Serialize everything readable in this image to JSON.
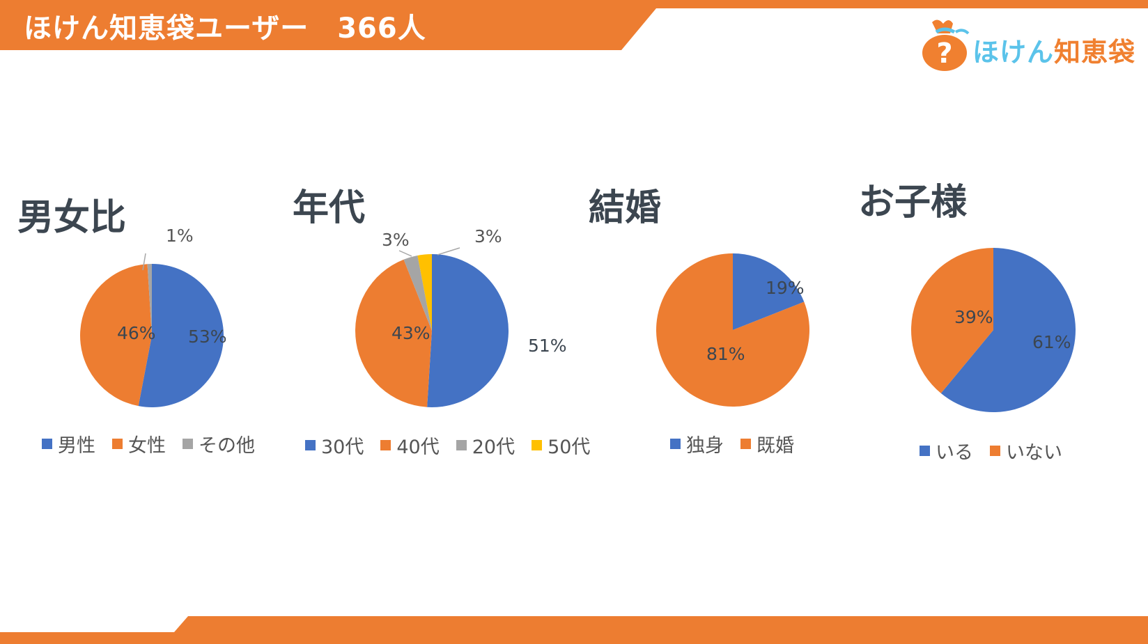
{
  "header": {
    "title": "ほけん知恵袋ユーザー　366人",
    "color": "#ED7D31"
  },
  "logo": {
    "icon": "money-bag-question-icon",
    "text_part1": "ほけん",
    "text_part2": "知恵袋"
  },
  "chart_data": [
    {
      "type": "pie",
      "title": "男女比",
      "slices": [
        {
          "name": "男性",
          "value": 53,
          "label": "53%",
          "color": "#4472C4"
        },
        {
          "name": "女性",
          "value": 46,
          "label": "46%",
          "color": "#ED7D31"
        },
        {
          "name": "その他",
          "value": 1,
          "label": "1%",
          "color": "#A5A5A5"
        }
      ],
      "legend_position": "bottom"
    },
    {
      "type": "pie",
      "title": "年代",
      "slices": [
        {
          "name": "30代",
          "value": 51,
          "label": "51%",
          "color": "#4472C4"
        },
        {
          "name": "40代",
          "value": 43,
          "label": "43%",
          "color": "#ED7D31"
        },
        {
          "name": "20代",
          "value": 3,
          "label": "3%",
          "color": "#A5A5A5"
        },
        {
          "name": "50代",
          "value": 3,
          "label": "3%",
          "color": "#FFC000"
        }
      ],
      "legend_position": "bottom"
    },
    {
      "type": "pie",
      "title": "結婚",
      "slices": [
        {
          "name": "独身",
          "value": 19,
          "label": "19%",
          "color": "#4472C4"
        },
        {
          "name": "既婚",
          "value": 81,
          "label": "81%",
          "color": "#ED7D31"
        }
      ],
      "legend_position": "bottom"
    },
    {
      "type": "pie",
      "title": "お子様",
      "slices": [
        {
          "name": "いる",
          "value": 61,
          "label": "61%",
          "color": "#4472C4"
        },
        {
          "name": "いない",
          "value": 39,
          "label": "39%",
          "color": "#ED7D31"
        }
      ],
      "legend_position": "bottom"
    }
  ]
}
